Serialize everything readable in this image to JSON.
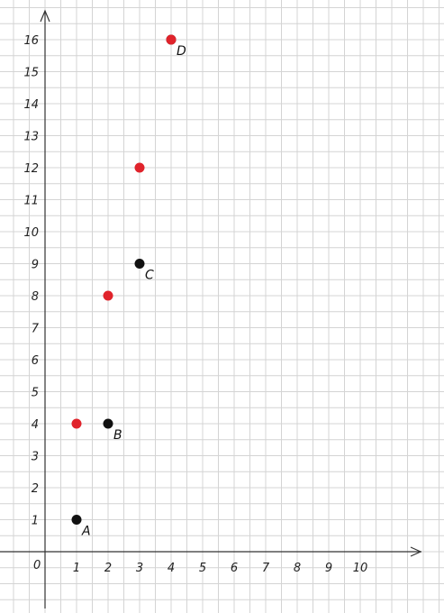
{
  "chart_data": {
    "type": "scatter",
    "title": "",
    "xlabel": "",
    "ylabel": "",
    "origin_label": "0",
    "xlim": [
      0,
      10
    ],
    "ylim": [
      0,
      16
    ],
    "x_ticks": [
      "1",
      "2",
      "3",
      "4",
      "5",
      "6",
      "7",
      "8",
      "9",
      "10"
    ],
    "y_ticks": [
      "1",
      "2",
      "3",
      "4",
      "5",
      "6",
      "7",
      "8",
      "9",
      "10",
      "11",
      "12",
      "13",
      "14",
      "15",
      "16"
    ],
    "grid": true,
    "grid_minor_per_unit": 2,
    "series": [
      {
        "color": "#111111",
        "points": [
          {
            "x": 1,
            "y": 1,
            "label": "A"
          },
          {
            "x": 2,
            "y": 4,
            "label": "B"
          },
          {
            "x": 3,
            "y": 9,
            "label": "C"
          },
          {
            "x": 4,
            "y": 16,
            "label": "D"
          }
        ]
      },
      {
        "color": "#e0232b",
        "points": [
          {
            "x": 1,
            "y": 4
          },
          {
            "x": 2,
            "y": 8
          },
          {
            "x": 3,
            "y": 12
          },
          {
            "x": 4,
            "y": 16
          }
        ]
      }
    ],
    "colors": {
      "grid": "#d4d4d4",
      "axis": "#333333"
    }
  }
}
